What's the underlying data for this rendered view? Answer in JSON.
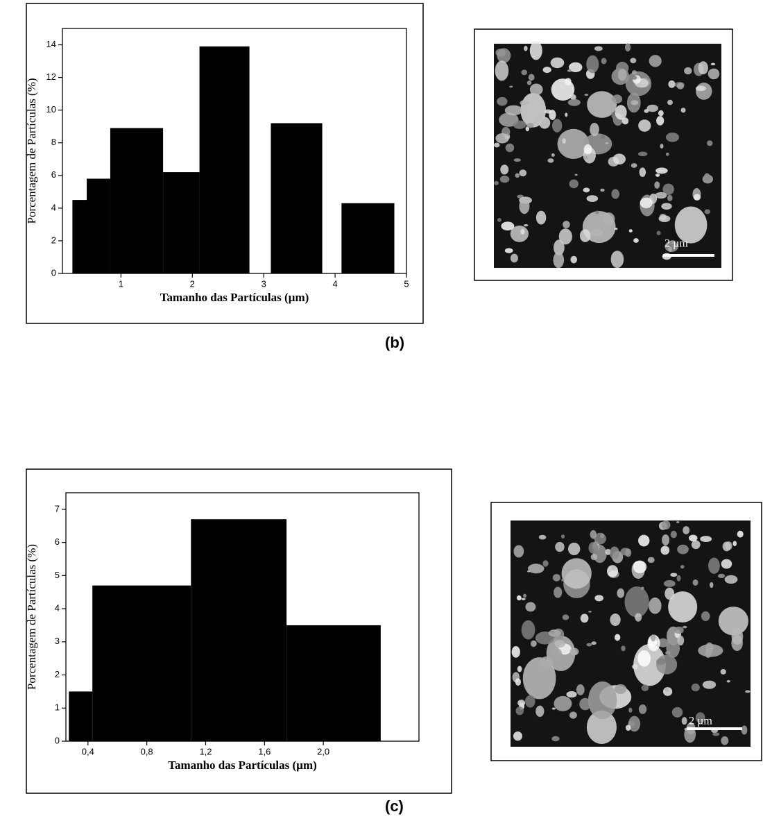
{
  "chart_data": [
    {
      "type": "histogram",
      "panel_label": "(b)",
      "x_label": "Tamanho das Partículas (µm)",
      "y_label": "Porcentagem de Partículas (%)",
      "bins": [
        0.32,
        0.52,
        0.85,
        1.59,
        2.1,
        2.8,
        3.1,
        3.82,
        4.09,
        4.83
      ],
      "values": [
        4.5,
        5.8,
        8.9,
        6.2,
        13.9,
        0,
        9.2,
        0,
        4.3
      ],
      "color": "#000000",
      "xlim": [
        0.18,
        5
      ],
      "xticks": [
        1,
        2,
        3,
        4,
        5
      ],
      "ylim": [
        0,
        15
      ],
      "yticks": [
        0,
        2,
        4,
        6,
        8,
        10,
        12,
        14
      ],
      "scale_bar_label": "2 µm"
    },
    {
      "type": "histogram",
      "panel_label": "(c)",
      "x_label": "Tamanho das Partículas (µm)",
      "y_label": "Porcentagem de Partículas (%)",
      "bins": [
        0.27,
        0.43,
        1.1,
        1.75,
        2.39
      ],
      "values": [
        1.5,
        4.7,
        6.7,
        3.5
      ],
      "color": "#000000",
      "xlim": [
        0.25,
        2.65
      ],
      "xticks": [
        {
          "value": 0.4,
          "label": "0,4"
        },
        {
          "value": 0.8,
          "label": "0,8"
        },
        {
          "value": 1.2,
          "label": "1,2"
        },
        {
          "value": 1.6,
          "label": "1,6"
        },
        {
          "value": 2.0,
          "label": "2,0"
        }
      ],
      "ylim": [
        0,
        7.5
      ],
      "yticks": [
        0,
        1,
        2,
        3,
        4,
        5,
        6,
        7
      ],
      "scale_bar_label": "2 µm"
    }
  ]
}
